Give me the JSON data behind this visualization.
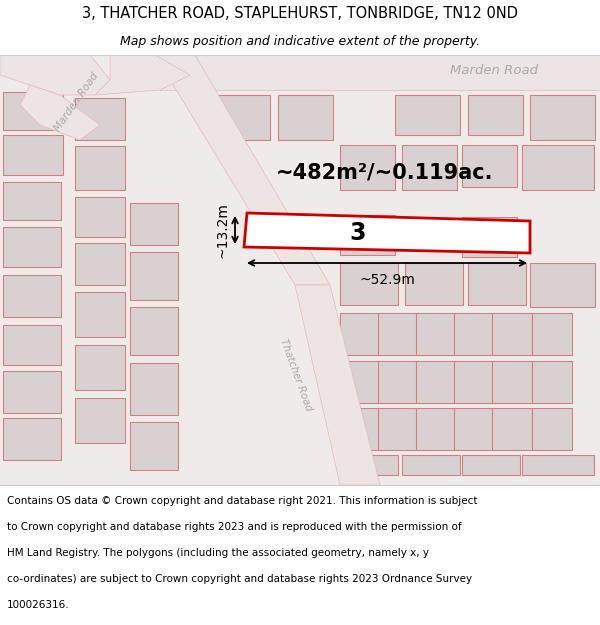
{
  "title_line1": "3, THATCHER ROAD, STAPLEHURST, TONBRIDGE, TN12 0ND",
  "title_line2": "Map shows position and indicative extent of the property.",
  "area_text": "~482m²/~0.119ac.",
  "width_label": "~52.9m",
  "height_label": "~13.2m",
  "property_number": "3",
  "marden_road_label_tr": "Marden Road",
  "marden_road_label_diag": "Marden Road",
  "thatcher_road_label": "Thatcher Road",
  "footer_lines": [
    "Contains OS data © Crown copyright and database right 2021. This information is subject",
    "to Crown copyright and database rights 2023 and is reproduced with the permission of",
    "HM Land Registry. The polygons (including the associated geometry, namely x, y",
    "co-ordinates) are subject to Crown copyright and database rights 2023 Ordnance Survey",
    "100026316."
  ],
  "map_bg": "#f0ebeb",
  "road_fill": "#ede4e4",
  "road_edge": "#e8b8b8",
  "building_fill": "#d9d1d1",
  "building_edge": "#d08080",
  "highlight_color": "#cc0000",
  "title_bg": "#ffffff",
  "footer_bg": "#ffffff",
  "title_fs": 10.5,
  "subtitle_fs": 9.0,
  "footer_fs": 7.5,
  "area_fs": 15,
  "meas_fs": 10,
  "prop_num_fs": 17,
  "road_label_fs": 9.5,
  "road_label_sm_fs": 7.5,
  "label_color": "#aaaaaa"
}
